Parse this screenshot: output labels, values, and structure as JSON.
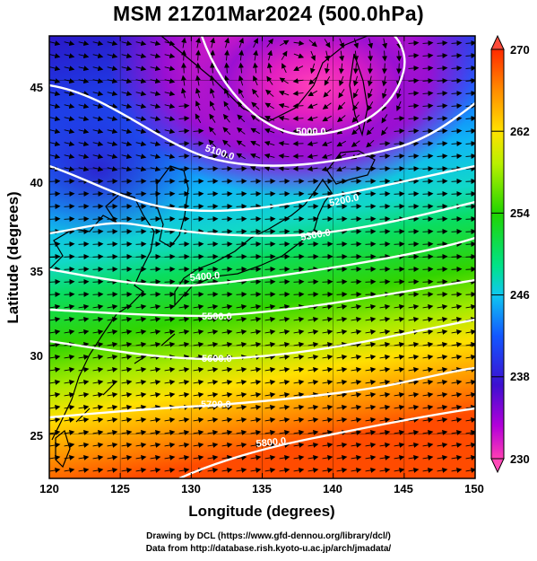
{
  "title": "MSM 21Z01Mar2024 (500.0hPa)",
  "xlabel": "Longitude (degrees)",
  "ylabel": "Latitude (degrees)",
  "x_ticks": [
    "120",
    "125",
    "130",
    "135",
    "140",
    "145",
    "150"
  ],
  "y_ticks": [
    "25",
    "30",
    "35",
    "40",
    "45"
  ],
  "colorbar": {
    "min": 230,
    "max": 270,
    "tick_labels": [
      "270",
      "262",
      "254",
      "246",
      "238",
      "230"
    ],
    "tick_values": [
      270,
      262,
      254,
      246,
      238,
      230
    ]
  },
  "contour_labels": [
    {
      "text": "5000.0"
    },
    {
      "text": "5100.0"
    },
    {
      "text": "5200.0"
    },
    {
      "text": "5300.0"
    },
    {
      "text": "5400.0"
    },
    {
      "text": "5500.0"
    },
    {
      "text": "5600.0"
    },
    {
      "text": "5700.0"
    },
    {
      "text": "5800.0"
    }
  ],
  "credits": {
    "line1": "Drawing by DCL (https://www.gfd-dennou.org/library/dcl/)",
    "line2": "Data from http://database.rish.kyoto-u.ac.jp/arch/jmadata/"
  },
  "chart_data": {
    "type": "heatmap",
    "title": "MSM 21Z01Mar2024 (500.0hPa)",
    "xlabel": "Longitude (degrees)",
    "ylabel": "Latitude (degrees)",
    "xlim": [
      120,
      150
    ],
    "ylim": [
      22.5,
      47.5
    ],
    "x_ticks": [
      120,
      125,
      130,
      135,
      140,
      145,
      150
    ],
    "y_ticks": [
      25,
      30,
      35,
      40,
      45
    ],
    "colorbar_range": [
      230,
      270
    ],
    "colorbar_ticks": [
      230,
      238,
      246,
      254,
      262,
      270
    ],
    "contour_levels": [
      5000,
      5100,
      5200,
      5300,
      5400,
      5500,
      5600,
      5700,
      5800
    ]
  }
}
